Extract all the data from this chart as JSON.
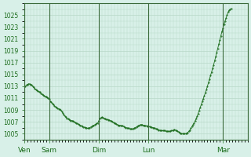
{
  "background_color": "#d8f0e8",
  "plot_bg_color": "#d8f0e8",
  "line_color": "#1a6b1a",
  "marker_color": "#1a6b1a",
  "grid_color": "#b8d8c8",
  "tick_label_color": "#1a6b1a",
  "ylim": [
    1004,
    1027
  ],
  "yticks": [
    1005,
    1007,
    1009,
    1011,
    1013,
    1015,
    1017,
    1019,
    1021,
    1023,
    1025
  ],
  "day_labels": [
    "Ven",
    "Sam",
    "Dim",
    "Lun",
    "Mar"
  ],
  "day_positions": [
    0,
    24,
    72,
    120,
    192
  ],
  "total_hours": 216,
  "data_y": [
    1013.0,
    1013.0,
    1013.2,
    1013.3,
    1013.4,
    1013.4,
    1013.3,
    1013.2,
    1013.0,
    1012.8,
    1012.6,
    1012.4,
    1012.3,
    1012.2,
    1012.1,
    1012.0,
    1011.8,
    1011.6,
    1011.5,
    1011.4,
    1011.3,
    1011.2,
    1011.1,
    1011.0,
    1010.8,
    1010.5,
    1010.3,
    1010.1,
    1009.9,
    1009.7,
    1009.5,
    1009.4,
    1009.3,
    1009.2,
    1009.1,
    1009.0,
    1008.8,
    1008.5,
    1008.2,
    1008.0,
    1007.8,
    1007.6,
    1007.5,
    1007.4,
    1007.3,
    1007.2,
    1007.2,
    1007.1,
    1007.0,
    1006.9,
    1006.8,
    1006.7,
    1006.6,
    1006.5,
    1006.4,
    1006.3,
    1006.2,
    1006.1,
    1006.1,
    1006.0,
    1006.0,
    1005.9,
    1005.9,
    1006.0,
    1006.1,
    1006.2,
    1006.3,
    1006.4,
    1006.5,
    1006.6,
    1006.7,
    1006.8,
    1007.2,
    1007.5,
    1007.7,
    1007.8,
    1007.7,
    1007.6,
    1007.5,
    1007.4,
    1007.4,
    1007.3,
    1007.3,
    1007.2,
    1007.1,
    1007.0,
    1006.9,
    1006.8,
    1006.7,
    1006.6,
    1006.5,
    1006.4,
    1006.4,
    1006.4,
    1006.3,
    1006.3,
    1006.2,
    1006.1,
    1006.0,
    1006.0,
    1005.9,
    1005.9,
    1005.8,
    1005.8,
    1005.8,
    1005.8,
    1005.9,
    1006.0,
    1006.1,
    1006.2,
    1006.3,
    1006.4,
    1006.5,
    1006.5,
    1006.5,
    1006.4,
    1006.4,
    1006.3,
    1006.3,
    1006.2,
    1006.2,
    1006.2,
    1006.1,
    1006.1,
    1006.0,
    1006.0,
    1005.9,
    1005.8,
    1005.8,
    1005.7,
    1005.6,
    1005.6,
    1005.5,
    1005.5,
    1005.5,
    1005.5,
    1005.5,
    1005.4,
    1005.4,
    1005.4,
    1005.4,
    1005.4,
    1005.5,
    1005.5,
    1005.6,
    1005.7,
    1005.6,
    1005.5,
    1005.4,
    1005.3,
    1005.2,
    1005.1,
    1005.0,
    1005.0,
    1005.0,
    1005.0,
    1005.0,
    1005.1,
    1005.2,
    1005.4,
    1005.6,
    1005.9,
    1006.2,
    1006.5,
    1006.8,
    1007.1,
    1007.5,
    1007.9,
    1008.4,
    1008.9,
    1009.4,
    1009.9,
    1010.4,
    1010.9,
    1011.4,
    1011.9,
    1012.4,
    1013.0,
    1013.6,
    1014.2,
    1014.8,
    1015.4,
    1016.0,
    1016.6,
    1017.3,
    1018.0,
    1018.7,
    1019.4,
    1020.1,
    1020.8,
    1021.5,
    1022.2,
    1022.8,
    1023.4,
    1024.0,
    1024.5,
    1025.0,
    1025.5,
    1025.8,
    1026.0,
    1026.1
  ]
}
